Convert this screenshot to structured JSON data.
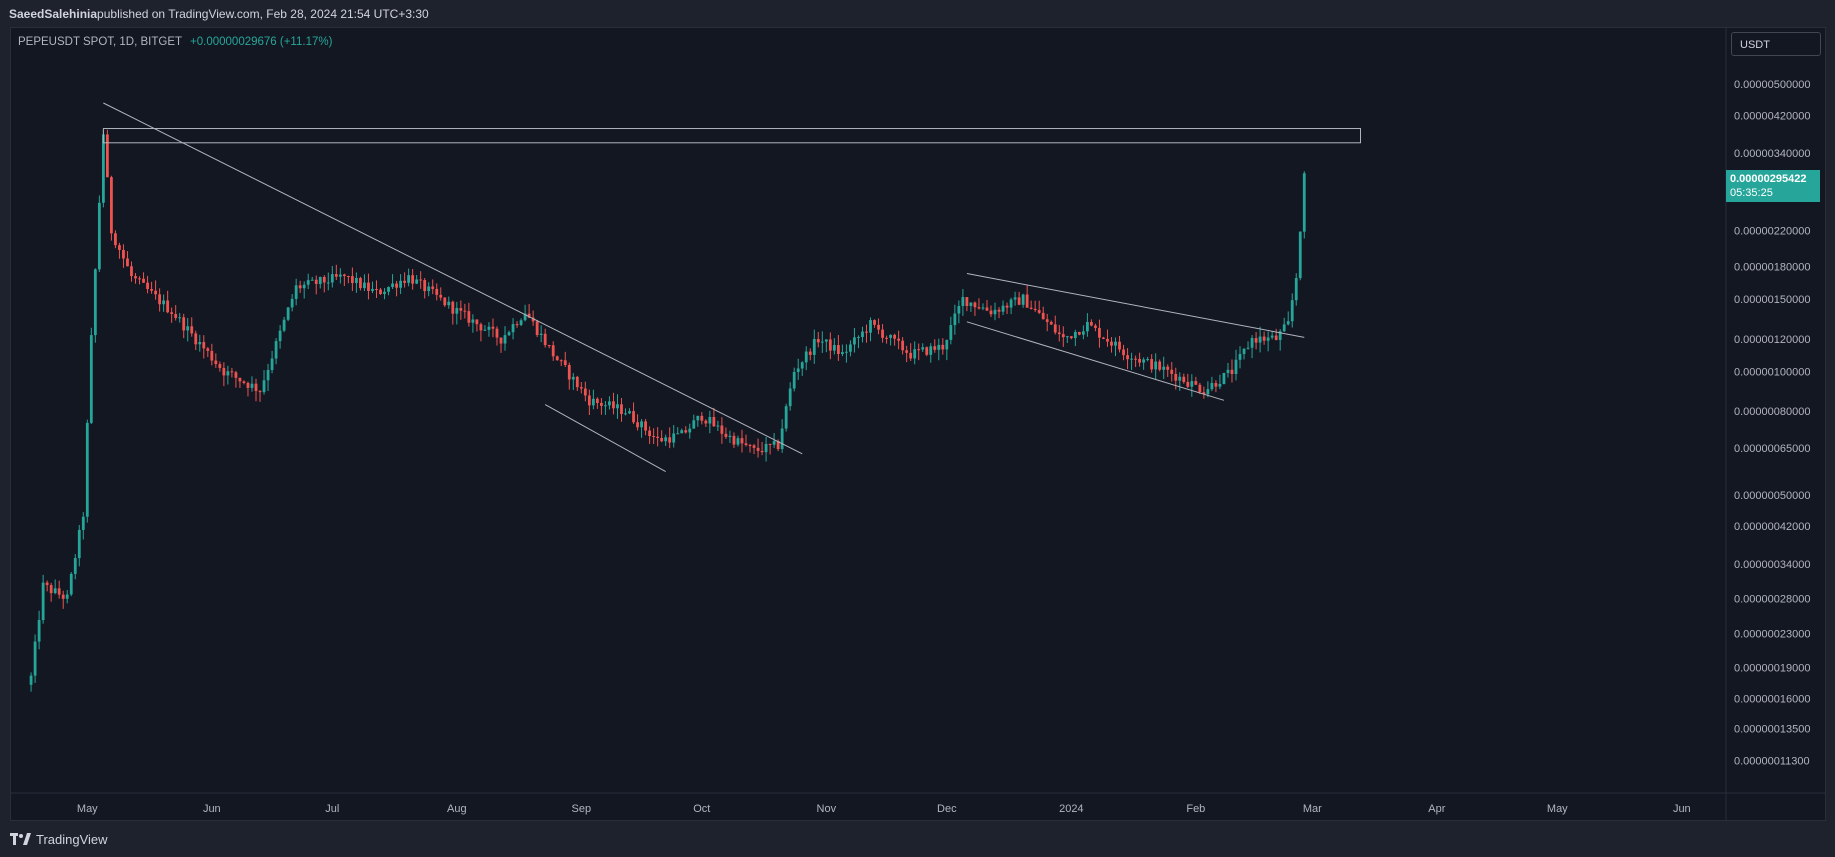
{
  "header": {
    "author": "SaeedSalehinia",
    "published_text": " published on TradingView.com, Feb 28, 2024 21:54 UTC+3:30"
  },
  "legend": {
    "symbol": "PEPEUSDT SPOT, 1D, BITGET",
    "change": "+0.00000029676 (+11.17%)"
  },
  "currency_button": {
    "label": "USDT"
  },
  "last_price_tag": {
    "price": "0.00000295422",
    "countdown": "05:35:25"
  },
  "footer": {
    "brand": "TradingView"
  },
  "colors": {
    "up": "#26a69a",
    "down": "#ef5350",
    "background": "#131722",
    "axis_text": "#b2b5be",
    "drawing": "#b2b5be"
  },
  "chart_data": {
    "type": "candlestick",
    "y_scale": "log",
    "ylim": [
      1e-07,
      5.5e-06
    ],
    "y_ticks": [
      {
        "label": "0.00000500000",
        "value": 5e-06
      },
      {
        "label": "0.00000420000",
        "value": 4.2e-06
      },
      {
        "label": "0.00000340000",
        "value": 3.4e-06
      },
      {
        "label": "0.00000220000",
        "value": 2.2e-06
      },
      {
        "label": "0.00000180000",
        "value": 1.8e-06
      },
      {
        "label": "0.00000150000",
        "value": 1.5e-06
      },
      {
        "label": "0.00000120000",
        "value": 1.2e-06
      },
      {
        "label": "0.00000100000",
        "value": 1e-06
      },
      {
        "label": "0.00000080000",
        "value": 8e-07
      },
      {
        "label": "0.00000065000",
        "value": 6.5e-07
      },
      {
        "label": "0.00000050000",
        "value": 5e-07
      },
      {
        "label": "0.00000042000",
        "value": 4.2e-07
      },
      {
        "label": "0.00000034000",
        "value": 3.4e-07
      },
      {
        "label": "0.00000028000",
        "value": 2.8e-07
      },
      {
        "label": "0.00000023000",
        "value": 2.3e-07
      },
      {
        "label": "0.00000019000",
        "value": 1.9e-07
      },
      {
        "label": "0.00000016000",
        "value": 1.6e-07
      },
      {
        "label": "0.00000013500",
        "value": 1.35e-07
      },
      {
        "label": "0.00000011300",
        "value": 1.13e-07
      }
    ],
    "x_ticks": [
      {
        "label": "May",
        "date": "2023-05-01"
      },
      {
        "label": "Jun",
        "date": "2023-06-01"
      },
      {
        "label": "Jul",
        "date": "2023-07-01"
      },
      {
        "label": "Aug",
        "date": "2023-08-01"
      },
      {
        "label": "Sep",
        "date": "2023-09-01"
      },
      {
        "label": "Oct",
        "date": "2023-10-01"
      },
      {
        "label": "Nov",
        "date": "2023-11-01"
      },
      {
        "label": "Dec",
        "date": "2023-12-01"
      },
      {
        "label": "2024",
        "date": "2024-01-01"
      },
      {
        "label": "Feb",
        "date": "2024-02-01"
      },
      {
        "label": "Mar",
        "date": "2024-03-01"
      },
      {
        "label": "Apr",
        "date": "2024-04-01"
      },
      {
        "label": "May",
        "date": "2024-05-01"
      },
      {
        "label": "Jun",
        "date": "2024-06-01"
      }
    ],
    "x_range": [
      "2023-04-12",
      "2024-06-12"
    ],
    "price_path": [
      {
        "date": "2023-04-17",
        "close": 1.8e-07
      },
      {
        "date": "2023-04-20",
        "close": 3e-07
      },
      {
        "date": "2023-04-26",
        "close": 2.8e-07
      },
      {
        "date": "2023-04-30",
        "close": 4.5e-07
      },
      {
        "date": "2023-05-02",
        "close": 1.2e-06
      },
      {
        "date": "2023-05-05",
        "close": 3.8e-06
      },
      {
        "date": "2023-05-07",
        "close": 2.2e-06
      },
      {
        "date": "2023-05-12",
        "close": 1.7e-06
      },
      {
        "date": "2023-05-22",
        "close": 1.4e-06
      },
      {
        "date": "2023-06-04",
        "close": 1e-06
      },
      {
        "date": "2023-06-13",
        "close": 9e-07
      },
      {
        "date": "2023-06-22",
        "close": 1.6e-06
      },
      {
        "date": "2023-07-04",
        "close": 1.7e-06
      },
      {
        "date": "2023-07-12",
        "close": 1.55e-06
      },
      {
        "date": "2023-07-20",
        "close": 1.7e-06
      },
      {
        "date": "2023-08-01",
        "close": 1.4e-06
      },
      {
        "date": "2023-08-12",
        "close": 1.2e-06
      },
      {
        "date": "2023-08-18",
        "close": 1.4e-06
      },
      {
        "date": "2023-08-25",
        "close": 1.1e-06
      },
      {
        "date": "2023-09-03",
        "close": 8.5e-07
      },
      {
        "date": "2023-09-12",
        "close": 8e-07
      },
      {
        "date": "2023-09-20",
        "close": 6.8e-07
      },
      {
        "date": "2023-09-26",
        "close": 7e-07
      },
      {
        "date": "2023-10-01",
        "close": 7.8e-07
      },
      {
        "date": "2023-10-07",
        "close": 7e-07
      },
      {
        "date": "2023-10-14",
        "close": 6.4e-07
      },
      {
        "date": "2023-10-20",
        "close": 6.6e-07
      },
      {
        "date": "2023-10-24",
        "close": 1e-06
      },
      {
        "date": "2023-10-30",
        "close": 1.2e-06
      },
      {
        "date": "2023-11-05",
        "close": 1.1e-06
      },
      {
        "date": "2023-11-12",
        "close": 1.3e-06
      },
      {
        "date": "2023-11-22",
        "close": 1.1e-06
      },
      {
        "date": "2023-11-30",
        "close": 1.15e-06
      },
      {
        "date": "2023-12-05",
        "close": 1.5e-06
      },
      {
        "date": "2023-12-12",
        "close": 1.4e-06
      },
      {
        "date": "2023-12-20",
        "close": 1.5e-06
      },
      {
        "date": "2023-12-30",
        "close": 1.2e-06
      },
      {
        "date": "2024-01-05",
        "close": 1.3e-06
      },
      {
        "date": "2024-01-15",
        "close": 1.1e-06
      },
      {
        "date": "2024-01-25",
        "close": 1e-06
      },
      {
        "date": "2024-02-03",
        "close": 9e-07
      },
      {
        "date": "2024-02-10",
        "close": 1e-06
      },
      {
        "date": "2024-02-15",
        "close": 1.2e-06
      },
      {
        "date": "2024-02-21",
        "close": 1.2e-06
      },
      {
        "date": "2024-02-24",
        "close": 1.3e-06
      },
      {
        "date": "2024-02-26",
        "close": 1.7e-06
      },
      {
        "date": "2024-02-28",
        "close": 2.95e-06
      }
    ],
    "drawings": [
      {
        "kind": "rectangle",
        "from_date": "2023-05-05",
        "to_date": "2024-03-13",
        "price_top": 3.9e-06,
        "price_bottom": 3.6e-06
      },
      {
        "kind": "trendline",
        "from": {
          "date": "2023-05-05",
          "price": 4.5e-06
        },
        "to": {
          "date": "2023-10-26",
          "price": 6.3e-07
        }
      },
      {
        "kind": "trendline",
        "from": {
          "date": "2023-08-23",
          "price": 8.3e-07
        },
        "to": {
          "date": "2023-09-22",
          "price": 5.7e-07
        }
      },
      {
        "kind": "trendline",
        "from": {
          "date": "2023-12-06",
          "price": 1.73e-06
        },
        "to": {
          "date": "2024-02-28",
          "price": 1.21e-06
        }
      },
      {
        "kind": "trendline",
        "from": {
          "date": "2023-12-06",
          "price": 1.32e-06
        },
        "to": {
          "date": "2024-02-08",
          "price": 8.5e-07
        }
      }
    ]
  }
}
